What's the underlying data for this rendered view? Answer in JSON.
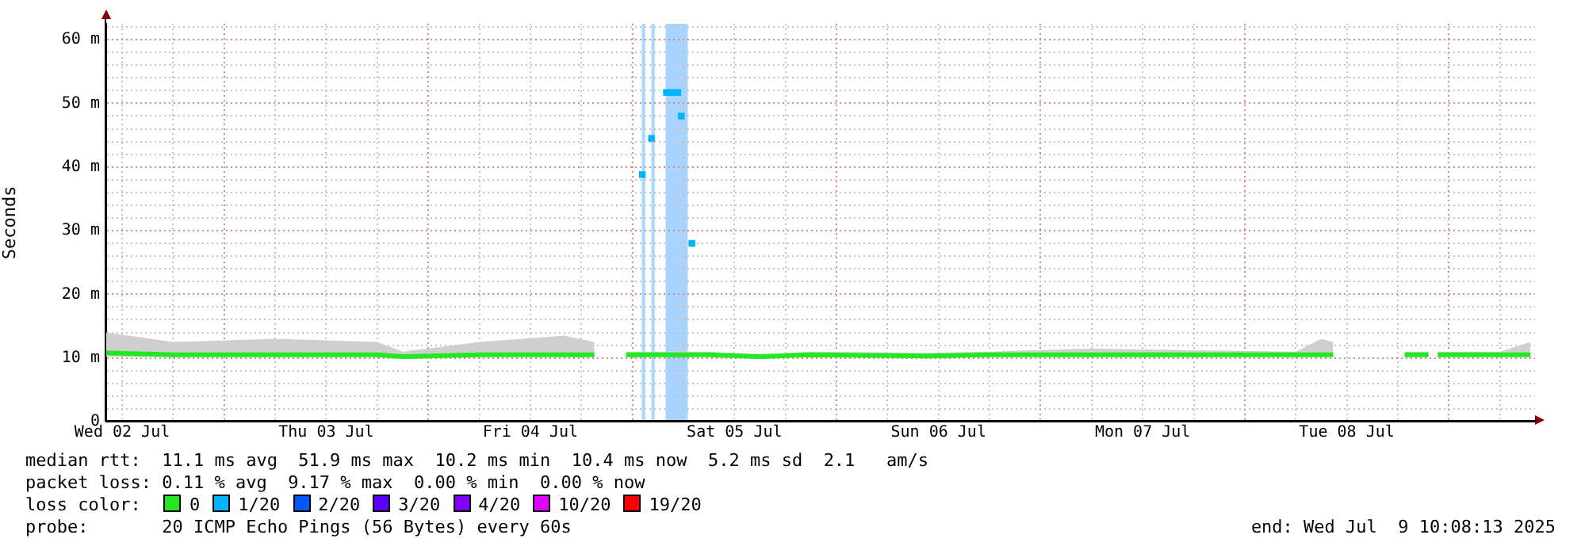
{
  "chart_data": {
    "type": "line",
    "ylabel": "Seconds",
    "legend_title": "loss color:",
    "legend": "bottom",
    "grid": true,
    "xlim": [
      "2025-07-02T10:08",
      "2025-07-09T10:08"
    ],
    "xticks": [
      {
        "value": "2025-07-02T12:00",
        "label": "Wed 02 Jul"
      },
      {
        "value": "2025-07-02T18:00",
        "label": null
      },
      {
        "value": "2025-07-03T00:00",
        "label": null
      },
      {
        "value": "2025-07-03T06:00",
        "label": null
      },
      {
        "value": "2025-07-03T12:00",
        "label": "Thu 03 Jul"
      },
      {
        "value": "2025-07-03T18:00",
        "label": null
      },
      {
        "value": "2025-07-04T00:00",
        "label": null
      },
      {
        "value": "2025-07-04T06:00",
        "label": null
      },
      {
        "value": "2025-07-04T12:00",
        "label": "Fri 04 Jul"
      },
      {
        "value": "2025-07-04T18:00",
        "label": null
      },
      {
        "value": "2025-07-05T00:00",
        "label": null
      },
      {
        "value": "2025-07-05T06:00",
        "label": null
      },
      {
        "value": "2025-07-05T12:00",
        "label": "Sat 05 Jul"
      },
      {
        "value": "2025-07-05T18:00",
        "label": null
      },
      {
        "value": "2025-07-06T00:00",
        "label": null
      },
      {
        "value": "2025-07-06T06:00",
        "label": null
      },
      {
        "value": "2025-07-06T12:00",
        "label": "Sun 06 Jul"
      },
      {
        "value": "2025-07-06T18:00",
        "label": null
      },
      {
        "value": "2025-07-07T00:00",
        "label": null
      },
      {
        "value": "2025-07-07T06:00",
        "label": null
      },
      {
        "value": "2025-07-07T12:00",
        "label": "Mon 07 Jul"
      },
      {
        "value": "2025-07-07T18:00",
        "label": null
      },
      {
        "value": "2025-07-08T00:00",
        "label": null
      },
      {
        "value": "2025-07-08T06:00",
        "label": null
      },
      {
        "value": "2025-07-08T12:00",
        "label": "Tue 08 Jul"
      },
      {
        "value": "2025-07-08T18:00",
        "label": null
      },
      {
        "value": "2025-07-09T00:00",
        "label": null
      },
      {
        "value": "2025-07-09T06:00",
        "label": null
      }
    ],
    "ylim": [
      0,
      62.5
    ],
    "yticks": [
      0,
      {
        "value": 2,
        "label": null
      },
      {
        "value": 4,
        "label": null
      },
      {
        "value": 6,
        "label": null
      },
      {
        "value": 8,
        "label": null
      },
      {
        "value": 10,
        "label": "10 m"
      },
      {
        "value": 12,
        "label": null
      },
      {
        "value": 14,
        "label": null
      },
      {
        "value": 16,
        "label": null
      },
      {
        "value": 18,
        "label": null
      },
      {
        "value": 20,
        "label": "20 m"
      },
      {
        "value": 22,
        "label": null
      },
      {
        "value": 24,
        "label": null
      },
      {
        "value": 26,
        "label": null
      },
      {
        "value": 28,
        "label": null
      },
      {
        "value": 30,
        "label": "30 m"
      },
      {
        "value": 32,
        "label": null
      },
      {
        "value": 34,
        "label": null
      },
      {
        "value": 36,
        "label": null
      },
      {
        "value": 38,
        "label": null
      },
      {
        "value": 40,
        "label": "40 m"
      },
      {
        "value": 42,
        "label": null
      },
      {
        "value": 44,
        "label": null
      },
      {
        "value": 46,
        "label": null
      },
      {
        "value": 48,
        "label": null
      },
      {
        "value": 50,
        "label": "50 m"
      },
      {
        "value": 52,
        "label": null
      },
      {
        "value": 54,
        "label": null
      },
      {
        "value": 56,
        "label": null
      },
      {
        "value": 58,
        "label": null
      },
      {
        "value": 60,
        "label": "60 m"
      },
      {
        "value": 62,
        "label": null
      }
    ],
    "bands": [
      {
        "axis": "x",
        "from": "2025-07-05T01:07",
        "to": "2025-07-05T01:30",
        "color": "#a8d8ff"
      },
      {
        "axis": "x",
        "from": "2025-07-05T02:14",
        "to": "2025-07-05T02:37",
        "color": "#a8d8ff"
      },
      {
        "axis": "x",
        "from": "2025-07-05T03:54",
        "to": "2025-07-05T06:31",
        "color": "#a8d4ff"
      }
    ],
    "series": [
      {
        "name": "0",
        "color": "#22e822",
        "x": [
          "2025-07-02T10:08",
          "2025-07-02T18:00",
          "2025-07-03T06:00",
          "2025-07-03T18:00",
          "2025-07-03T21:00",
          "2025-07-04T06:00",
          "2025-07-04T16:00",
          "2025-07-04T19:32",
          "2025-07-04T21:00",
          "2025-07-04T23:15",
          "2025-07-05T08:56",
          "2025-07-05T15:00",
          "2025-07-05T21:00",
          "2025-07-06T11:00",
          "2025-07-06T18:00",
          "2025-07-07T06:00",
          "2025-07-07T18:00",
          "2025-07-08T06:00",
          "2025-07-08T09:00",
          "2025-07-08T10:24",
          "2025-07-08T14:00",
          "2025-07-08T18:48",
          "2025-07-08T21:36",
          "2025-07-08T22:10",
          "2025-07-08T22:42",
          "2025-07-09T06:00",
          "2025-07-09T09:36"
        ],
        "values": [
          10.8,
          10.5,
          10.5,
          10.5,
          10.2,
          10.5,
          10.5,
          10.5,
          null,
          10.5,
          10.5,
          10.2,
          10.5,
          10.3,
          10.5,
          10.5,
          10.5,
          10.5,
          10.5,
          10.5,
          null,
          10.5,
          10.5,
          null,
          10.5,
          10.5,
          10.5
        ],
        "upper": [
          14,
          12.5,
          13,
          12.5,
          11,
          12.5,
          13.5,
          12.5,
          null,
          11,
          11,
          10.5,
          11,
          10.8,
          11,
          11.5,
          11.2,
          11,
          13,
          12.5,
          null,
          11,
          11,
          null,
          11,
          11,
          12.5
        ],
        "lower": [
          10.2,
          10.2,
          10.2,
          10.2,
          10,
          10.2,
          10.2,
          10.2,
          null,
          10.2,
          10.2,
          10,
          10.2,
          10,
          10.2,
          10.2,
          10.2,
          10.2,
          10.2,
          10.2,
          null,
          10.2,
          10.2,
          null,
          10.2,
          10.2,
          10.2
        ]
      },
      {
        "name": "1/20",
        "color": "#00b4ff",
        "type": "scatter",
        "marker": "square",
        "x": [
          "2025-07-05T01:10",
          "2025-07-05T02:15",
          "2025-07-05T04:00",
          "2025-07-05T04:40",
          "2025-07-05T05:20",
          "2025-07-05T05:45",
          "2025-07-05T07:00"
        ],
        "values": [
          38.8,
          44.5,
          51.7,
          51.7,
          51.7,
          48,
          28
        ]
      },
      {
        "name": "2/20",
        "color": "#0058ff"
      },
      {
        "name": "3/20",
        "color": "#5c00ff"
      },
      {
        "name": "4/20",
        "color": "#8000ff"
      },
      {
        "name": "10/20",
        "color": "#e000ff"
      },
      {
        "name": "19/20",
        "color": "#ff0000"
      }
    ],
    "annotations": [
      "median rtt:  11.1 ms avg  51.9 ms max  10.2 ms min  10.4 ms now  5.2 ms sd  2.1   am/s",
      "packet loss: 0.11 % avg  9.17 % max  0.00 % min  0.00 % now",
      "probe:       20 ICMP Echo Pings (56 Bytes) every 60s",
      "end: Wed Jul  9 10:08:13 2025"
    ]
  }
}
